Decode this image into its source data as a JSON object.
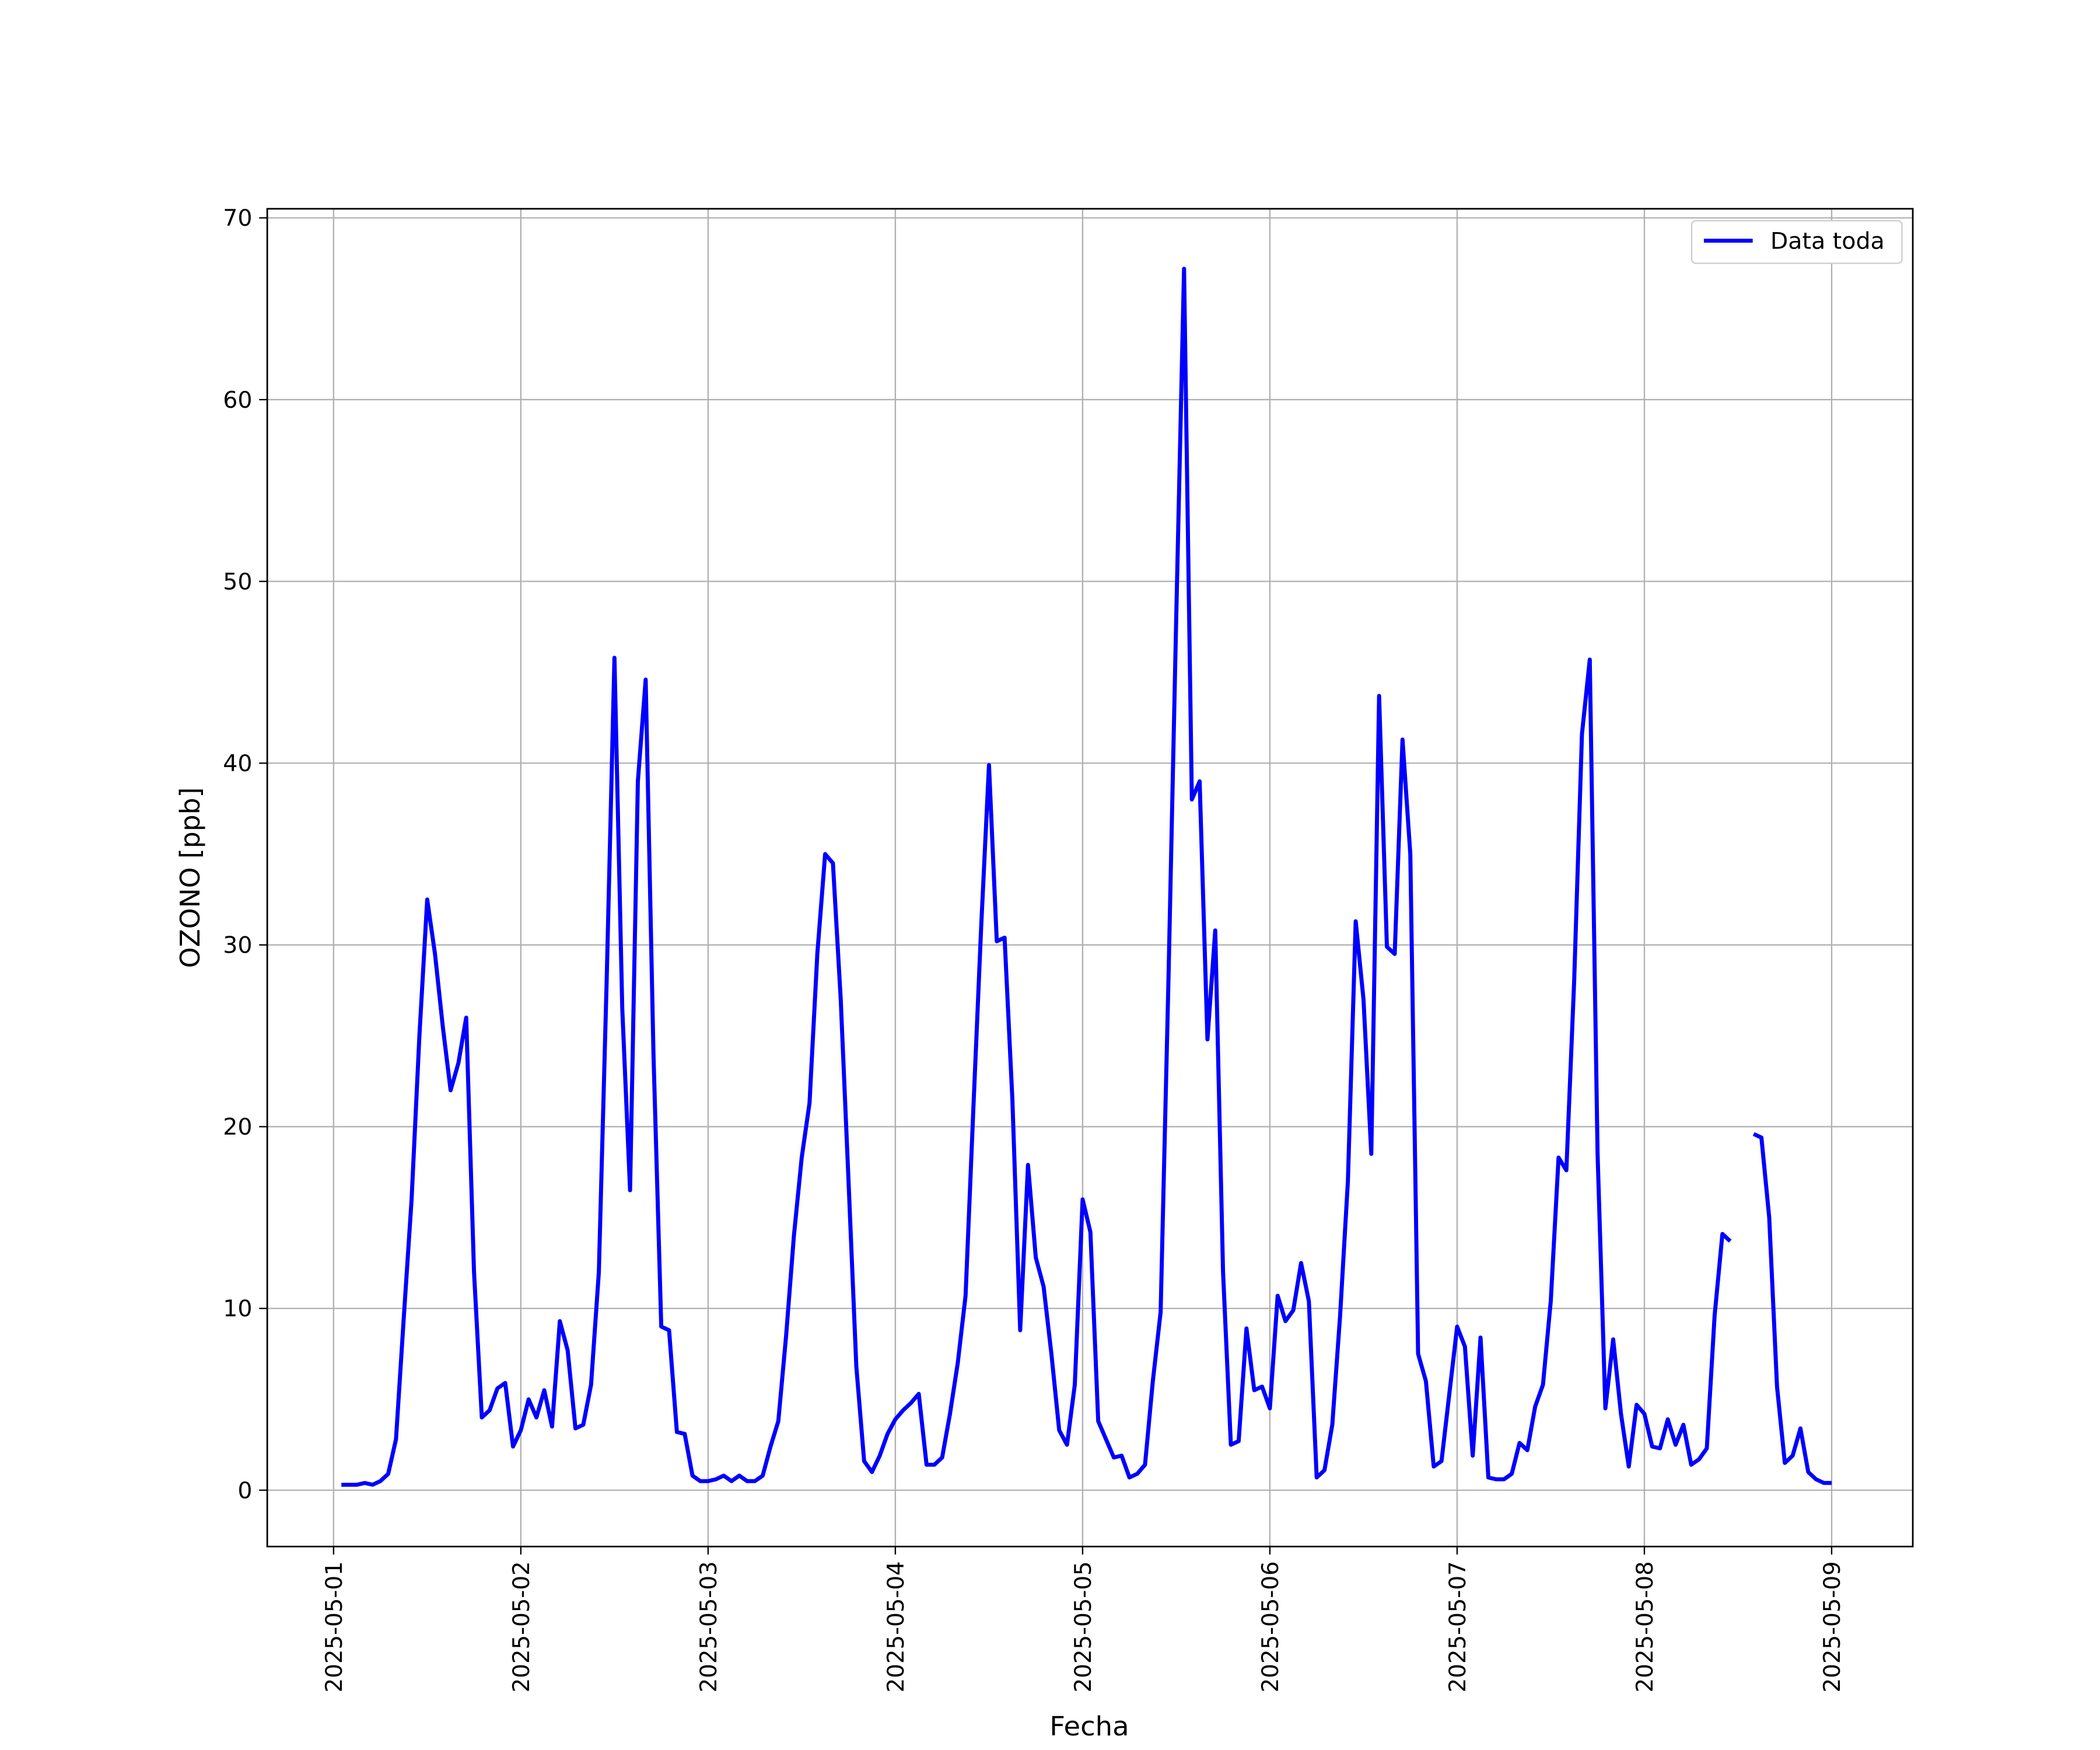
{
  "chart_data": {
    "type": "line",
    "x_label": "Fecha",
    "y_label": "OZONO [ppb]",
    "xlim": [
      -8.5,
      202.4
    ],
    "xticks": [
      {
        "value": 0,
        "label": "2025-05-01"
      },
      {
        "value": 24,
        "label": "2025-05-02"
      },
      {
        "value": 48,
        "label": "2025-05-03"
      },
      {
        "value": 72,
        "label": "2025-05-04"
      },
      {
        "value": 96,
        "label": "2025-05-05"
      },
      {
        "value": 120,
        "label": "2025-05-06"
      },
      {
        "value": 144,
        "label": "2025-05-07"
      },
      {
        "value": 168,
        "label": "2025-05-08"
      },
      {
        "value": 192,
        "label": "2025-05-09"
      }
    ],
    "ylim": [
      -3.1,
      70.5
    ],
    "yticks": [
      0,
      10,
      20,
      30,
      40,
      50,
      60,
      70
    ],
    "grid": true,
    "legend": "upper right",
    "x": [
      1,
      2,
      3,
      4,
      5,
      6,
      7,
      8,
      9,
      10,
      11,
      12,
      13,
      14,
      15,
      16,
      17,
      18,
      19,
      20,
      21,
      22,
      23,
      24,
      25,
      26,
      27,
      28,
      29,
      30,
      31,
      32,
      33,
      34,
      35,
      36,
      37,
      38,
      39,
      40,
      41,
      42,
      43,
      44,
      45,
      46,
      47,
      48,
      49,
      50,
      51,
      52,
      53,
      54,
      55,
      56,
      57,
      58,
      59,
      60,
      61,
      62,
      63,
      64,
      65,
      66,
      67,
      68,
      69,
      70,
      71,
      72,
      73,
      74,
      75,
      76,
      77,
      78,
      79,
      80,
      81,
      82,
      83,
      84,
      85,
      86,
      87,
      88,
      89,
      90,
      91,
      92,
      93,
      94,
      95,
      96,
      97,
      98,
      99,
      100,
      101,
      102,
      103,
      104,
      105,
      106,
      107,
      108,
      109,
      110,
      111,
      112,
      113,
      114,
      115,
      116,
      117,
      118,
      119,
      120,
      121,
      122,
      123,
      124,
      125,
      126,
      127,
      128,
      129,
      130,
      131,
      132,
      133,
      134,
      135,
      136,
      137,
      138,
      139,
      140,
      141,
      142,
      143,
      144,
      145,
      146,
      147,
      148,
      149,
      150,
      151,
      152,
      153,
      154,
      155,
      156,
      157,
      158,
      159,
      160,
      161,
      162,
      163,
      164,
      165,
      166,
      167,
      168,
      169,
      170,
      171,
      172,
      173,
      174,
      175,
      176,
      177,
      178,
      179,
      180,
      181,
      182,
      183,
      184,
      185,
      186,
      187,
      188,
      189,
      190,
      191,
      192
    ],
    "series": [
      {
        "name": "Data toda",
        "color": "#0000ff",
        "values": [
          0.3,
          0.3,
          0.3,
          0.4,
          0.3,
          0.5,
          0.9,
          2.8,
          9.5,
          16,
          25,
          32.5,
          29.5,
          25.5,
          22,
          23.5,
          26,
          12,
          4,
          4.4,
          5.6,
          5.9,
          2.4,
          3.3,
          5,
          4,
          5.5,
          3.5,
          9.3,
          7.7,
          3.4,
          3.6,
          5.8,
          12,
          28,
          45.8,
          26.5,
          16.5,
          39,
          44.6,
          24,
          9,
          8.8,
          3.2,
          3.1,
          0.8,
          0.5,
          0.5,
          0.6,
          0.8,
          0.5,
          0.8,
          0.5,
          0.5,
          0.8,
          2.4,
          3.8,
          8.5,
          14,
          18.3,
          21.3,
          29.5,
          35,
          34.5,
          27,
          17,
          6.8,
          1.6,
          1,
          1.9,
          3.1,
          3.9,
          4.4,
          4.8,
          5.3,
          1.4,
          1.4,
          1.8,
          4.2,
          7,
          10.7,
          21,
          31,
          39.9,
          30.2,
          30.4,
          21.5,
          8.8,
          17.9,
          12.8,
          11.2,
          7.5,
          3.3,
          2.5,
          5.8,
          16,
          14.2,
          3.8,
          2.8,
          1.8,
          1.9,
          0.7,
          0.9,
          1.4,
          6,
          9.8,
          28,
          48,
          67.2,
          38,
          39,
          24.8,
          30.8,
          12,
          2.5,
          2.7,
          8.9,
          5.5,
          5.7,
          4.5,
          10.7,
          9.3,
          9.9,
          12.5,
          10.4,
          0.7,
          1.1,
          3.6,
          9.6,
          17,
          31.3,
          27,
          18.5,
          43.7,
          29.9,
          29.5,
          41.3,
          35,
          7.5,
          6,
          1.3,
          1.6,
          5.3,
          9,
          7.9,
          1.9,
          8.4,
          0.7,
          0.6,
          0.6,
          0.9,
          2.6,
          2.2,
          4.6,
          5.8,
          10.4,
          18.3,
          17.6,
          28,
          41.6,
          45.7,
          18.5,
          4.5,
          8.3,
          4.2,
          1.3,
          4.7,
          4.2,
          2.4,
          2.3,
          3.9,
          2.5,
          3.6,
          1.4,
          1.7,
          2.3,
          9.6,
          14.1,
          13.7,
          null,
          null,
          19.6,
          19.4,
          15,
          5.7,
          1.5,
          1.9,
          3.4,
          1,
          0.6,
          0.4,
          0.4
        ]
      }
    ]
  }
}
